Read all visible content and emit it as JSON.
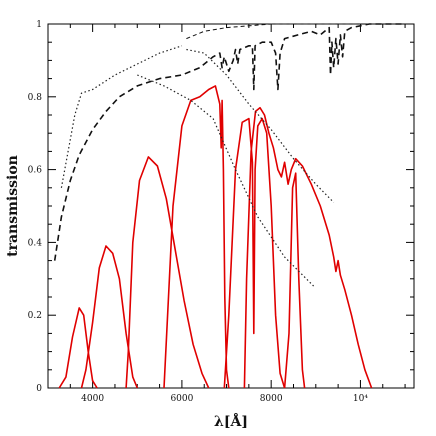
{
  "chart_data": {
    "type": "line",
    "title": "",
    "xlabel": "λ[Å]",
    "ylabel": "transmission",
    "xlim": [
      3000,
      11200
    ],
    "ylim": [
      0,
      1
    ],
    "x_ticks": [
      4000,
      6000,
      8000,
      10000
    ],
    "x_tick_labels": [
      "4000",
      "6000",
      "8000",
      "10⁴"
    ],
    "y_ticks": [
      0,
      0.2,
      0.4,
      0.6,
      0.8,
      1
    ],
    "y_tick_labels": [
      "0",
      "0.2",
      "0.4",
      "0.6",
      "0.8",
      "1"
    ],
    "grid": false,
    "legend": "none",
    "colors": {
      "filters": "#e00000",
      "atmosphere": "#111111",
      "reference": "#222222",
      "axes": "#000000"
    },
    "series": [
      {
        "style": "solid-red",
        "points": [
          [
            3250,
            0
          ],
          [
            3400,
            0.03
          ],
          [
            3550,
            0.14
          ],
          [
            3700,
            0.22
          ],
          [
            3800,
            0.2
          ],
          [
            3900,
            0.1
          ],
          [
            4000,
            0.02
          ],
          [
            4100,
            0
          ]
        ]
      },
      {
        "style": "solid-red",
        "points": [
          [
            3750,
            0
          ],
          [
            3850,
            0.05
          ],
          [
            4000,
            0.18
          ],
          [
            4150,
            0.33
          ],
          [
            4300,
            0.39
          ],
          [
            4450,
            0.37
          ],
          [
            4600,
            0.3
          ],
          [
            4750,
            0.15
          ],
          [
            4900,
            0.03
          ],
          [
            5000,
            0
          ]
        ]
      },
      {
        "style": "solid-red",
        "points": [
          [
            4750,
            0
          ],
          [
            4800,
            0.1
          ],
          [
            4900,
            0.4
          ],
          [
            5050,
            0.57
          ],
          [
            5250,
            0.635
          ],
          [
            5450,
            0.61
          ],
          [
            5650,
            0.52
          ],
          [
            5850,
            0.38
          ],
          [
            6050,
            0.24
          ],
          [
            6250,
            0.12
          ],
          [
            6450,
            0.04
          ],
          [
            6600,
            0
          ]
        ]
      },
      {
        "style": "solid-red",
        "points": [
          [
            5600,
            0
          ],
          [
            5700,
            0.25
          ],
          [
            5800,
            0.5
          ],
          [
            6000,
            0.72
          ],
          [
            6200,
            0.79
          ],
          [
            6400,
            0.8
          ],
          [
            6600,
            0.82
          ],
          [
            6750,
            0.83
          ],
          [
            6850,
            0.78
          ],
          [
            6880,
            0.66
          ],
          [
            6900,
            0.79
          ],
          [
            6930,
            0.6
          ],
          [
            6960,
            0.25
          ],
          [
            7000,
            0.05
          ],
          [
            7050,
            0
          ]
        ]
      },
      {
        "style": "solid-red",
        "points": [
          [
            6950,
            0
          ],
          [
            7050,
            0.2
          ],
          [
            7200,
            0.6
          ],
          [
            7350,
            0.73
          ],
          [
            7500,
            0.74
          ],
          [
            7580,
            0.62
          ],
          [
            7610,
            0.15
          ],
          [
            7640,
            0.6
          ],
          [
            7700,
            0.72
          ],
          [
            7800,
            0.74
          ],
          [
            7900,
            0.7
          ],
          [
            8000,
            0.5
          ],
          [
            8100,
            0.2
          ],
          [
            8200,
            0.04
          ],
          [
            8300,
            0
          ]
        ]
      },
      {
        "style": "solid-red",
        "points": [
          [
            7400,
            0
          ],
          [
            7450,
            0.3
          ],
          [
            7550,
            0.65
          ],
          [
            7650,
            0.76
          ],
          [
            7750,
            0.77
          ],
          [
            7850,
            0.75
          ],
          [
            7950,
            0.7
          ],
          [
            8050,
            0.66
          ],
          [
            8150,
            0.6
          ],
          [
            8230,
            0.58
          ],
          [
            8300,
            0.62
          ],
          [
            8380,
            0.56
          ],
          [
            8450,
            0.6
          ],
          [
            8550,
            0.63
          ],
          [
            8700,
            0.61
          ],
          [
            8900,
            0.56
          ],
          [
            9100,
            0.5
          ],
          [
            9300,
            0.42
          ],
          [
            9400,
            0.36
          ],
          [
            9450,
            0.32
          ],
          [
            9500,
            0.35
          ],
          [
            9550,
            0.31
          ],
          [
            9650,
            0.27
          ],
          [
            9800,
            0.2
          ],
          [
            9950,
            0.12
          ],
          [
            10100,
            0.05
          ],
          [
            10250,
            0
          ]
        ]
      },
      {
        "style": "solid-red",
        "points": [
          [
            8300,
            0
          ],
          [
            8400,
            0.15
          ],
          [
            8480,
            0.55
          ],
          [
            8550,
            0.59
          ],
          [
            8620,
            0.3
          ],
          [
            8700,
            0.05
          ],
          [
            8750,
            0
          ]
        ]
      },
      {
        "style": "dashed-black",
        "points": [
          [
            3150,
            0.35
          ],
          [
            3300,
            0.47
          ],
          [
            3500,
            0.57
          ],
          [
            3700,
            0.64
          ],
          [
            4000,
            0.71
          ],
          [
            4300,
            0.76
          ],
          [
            4600,
            0.8
          ],
          [
            5000,
            0.83
          ],
          [
            5500,
            0.85
          ],
          [
            6000,
            0.86
          ],
          [
            6400,
            0.88
          ],
          [
            6700,
            0.91
          ],
          [
            6850,
            0.92
          ],
          [
            6900,
            0.88
          ],
          [
            6950,
            0.91
          ],
          [
            7050,
            0.87
          ],
          [
            7150,
            0.9
          ],
          [
            7200,
            0.93
          ],
          [
            7250,
            0.89
          ],
          [
            7300,
            0.93
          ],
          [
            7500,
            0.94
          ],
          [
            7580,
            0.94
          ],
          [
            7610,
            0.82
          ],
          [
            7640,
            0.94
          ],
          [
            7800,
            0.95
          ],
          [
            8000,
            0.95
          ],
          [
            8100,
            0.92
          ],
          [
            8150,
            0.82
          ],
          [
            8200,
            0.92
          ],
          [
            8300,
            0.96
          ],
          [
            8600,
            0.97
          ],
          [
            8900,
            0.98
          ],
          [
            9100,
            0.97
          ],
          [
            9200,
            0.98
          ],
          [
            9300,
            0.99
          ],
          [
            9330,
            0.86
          ],
          [
            9360,
            0.95
          ],
          [
            9400,
            0.88
          ],
          [
            9450,
            0.96
          ],
          [
            9500,
            0.89
          ],
          [
            9550,
            0.97
          ],
          [
            9600,
            0.91
          ],
          [
            9650,
            0.98
          ],
          [
            9800,
            0.99
          ],
          [
            10200,
            1.0
          ],
          [
            11000,
            1.0
          ]
        ]
      },
      {
        "style": "dashed-black-thin",
        "points": [
          [
            6100,
            0.96
          ],
          [
            6500,
            0.98
          ],
          [
            7000,
            0.99
          ],
          [
            8000,
            1.0
          ],
          [
            10000,
            1.0
          ]
        ]
      },
      {
        "style": "dotted-black",
        "points": [
          [
            3300,
            0.55
          ],
          [
            3450,
            0.65
          ],
          [
            3600,
            0.75
          ],
          [
            3750,
            0.81
          ],
          [
            4000,
            0.82
          ],
          [
            4500,
            0.86
          ],
          [
            5000,
            0.89
          ],
          [
            5500,
            0.92
          ],
          [
            6000,
            0.94
          ]
        ]
      },
      {
        "style": "dotted-black",
        "points": [
          [
            5000,
            0.86
          ],
          [
            5600,
            0.83
          ],
          [
            6200,
            0.79
          ],
          [
            6700,
            0.74
          ],
          [
            7200,
            0.6
          ],
          [
            7700,
            0.47
          ],
          [
            8300,
            0.36
          ],
          [
            8950,
            0.28
          ]
        ]
      },
      {
        "style": "dotted-black",
        "points": [
          [
            6100,
            0.93
          ],
          [
            6500,
            0.92
          ],
          [
            7000,
            0.86
          ],
          [
            7500,
            0.78
          ],
          [
            8000,
            0.71
          ],
          [
            8500,
            0.63
          ],
          [
            9000,
            0.56
          ],
          [
            9400,
            0.51
          ]
        ]
      }
    ]
  }
}
